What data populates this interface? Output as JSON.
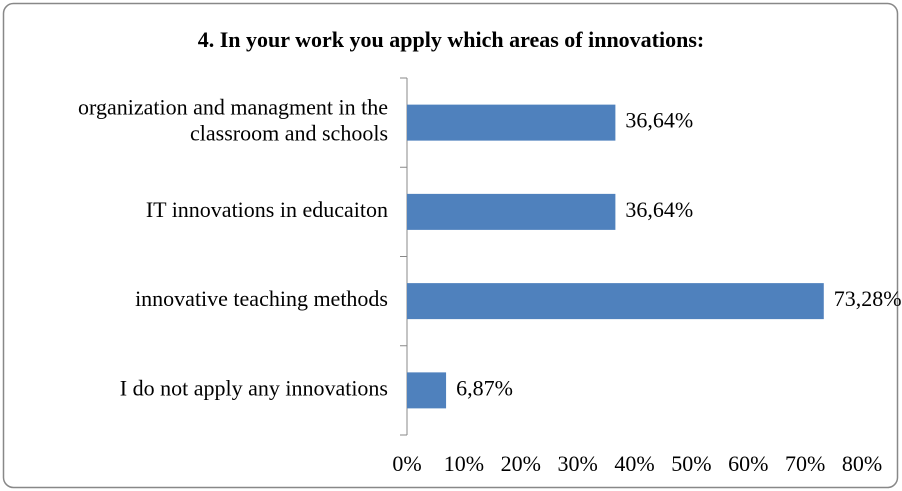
{
  "chart_data": {
    "type": "bar",
    "orientation": "horizontal",
    "title": "4. In your work you apply which areas of innovations:",
    "categories": [
      "organization and managment in the classroom and schools",
      "IT innovations in educaiton",
      "innovative teaching methods",
      "I do not apply any innovations"
    ],
    "values": [
      36.64,
      36.64,
      73.28,
      6.87
    ],
    "value_labels": [
      "36,64%",
      "36,64%",
      "73,28%",
      "6,87%"
    ],
    "color": "#4f81bd",
    "xlim": [
      0,
      80
    ],
    "xticks": [
      {
        "value": 0,
        "label": "0%"
      },
      {
        "value": 10,
        "label": "10%"
      },
      {
        "value": 20,
        "label": "20%"
      },
      {
        "value": 30,
        "label": "30%"
      },
      {
        "value": 40,
        "label": "40%"
      },
      {
        "value": 50,
        "label": "50%"
      },
      {
        "value": 60,
        "label": "60%"
      },
      {
        "value": 70,
        "label": "70%"
      },
      {
        "value": 80,
        "label": "80%"
      }
    ],
    "grid": false
  }
}
